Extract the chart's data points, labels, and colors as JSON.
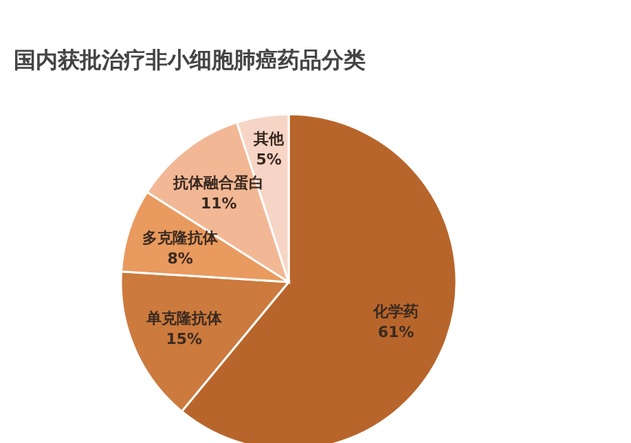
{
  "chart_data": {
    "type": "pie",
    "title": "国内获批治疗非小细胞肺癌药品分类",
    "categories": [
      "化学药",
      "单克隆抗体",
      "多克隆抗体",
      "抗体融合蛋白",
      "其他"
    ],
    "values": [
      61,
      15,
      8,
      11,
      5
    ],
    "value_labels": [
      "61%",
      "15%",
      "8%",
      "11%",
      "5%"
    ],
    "colors": [
      "#b8652b",
      "#cc7a3e",
      "#e99a5e",
      "#f2b896",
      "#f6d5c6"
    ],
    "legend": false
  }
}
